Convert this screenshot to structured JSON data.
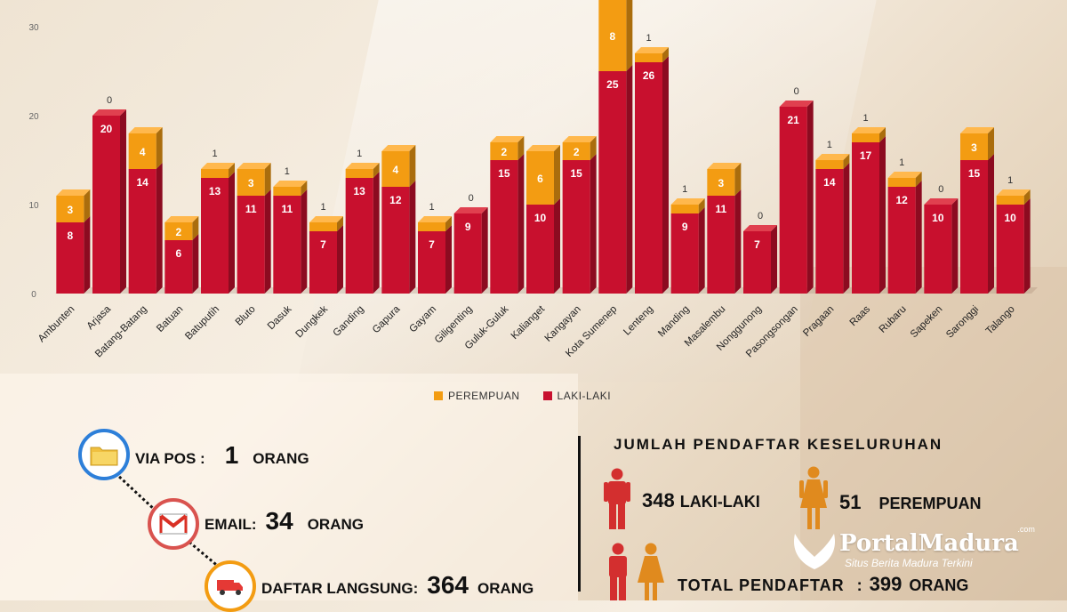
{
  "chart_data": {
    "type": "bar",
    "stacked": true,
    "ylim": [
      0,
      30
    ],
    "yticks": [
      0,
      10,
      20,
      30
    ],
    "categories": [
      "Ambunten",
      "Arjasa",
      "Batang-Batang",
      "Batuan",
      "Batuputih",
      "Bluto",
      "Dasuk",
      "Dungkek",
      "Ganding",
      "Gapura",
      "Gayam",
      "Giligenting",
      "Guluk-Guluk",
      "Kalianget",
      "Kangayan",
      "Kota Sumenep",
      "Lenteng",
      "Manding",
      "Masalembu",
      "Nonggunong",
      "Pasongsongan",
      "Pragaan",
      "Raas",
      "Rubaru",
      "Sapeken",
      "Saronggi",
      "Talango"
    ],
    "series": [
      {
        "name": "LAKI-LAKI",
        "color": "#c8102e",
        "values": [
          8,
          20,
          14,
          6,
          13,
          11,
          11,
          7,
          13,
          12,
          7,
          9,
          15,
          10,
          15,
          25,
          26,
          9,
          11,
          7,
          21,
          14,
          17,
          12,
          10,
          15,
          10
        ]
      },
      {
        "name": "PEREMPUAN",
        "color": "#f39c12",
        "values": [
          3,
          0,
          4,
          2,
          1,
          3,
          1,
          1,
          1,
          4,
          1,
          0,
          2,
          6,
          2,
          8,
          1,
          1,
          3,
          0,
          0,
          1,
          1,
          1,
          0,
          3,
          1
        ]
      }
    ],
    "legend": [
      "PEREMPUAN",
      "LAKI-LAKI"
    ],
    "legend_position": "bottom"
  },
  "methods": [
    {
      "label": "VIA POS :",
      "value": "1",
      "unit": "ORANG",
      "icon": "folder-icon",
      "color": "#2d7fd9"
    },
    {
      "label": "EMAIL:",
      "value": "34",
      "unit": "ORANG",
      "icon": "gmail-icon",
      "color": "#d9534f"
    },
    {
      "label": "DAFTAR LANGSUNG:",
      "value": "364",
      "unit": "ORANG",
      "icon": "delivery-truck-icon",
      "color": "#f39c12"
    }
  ],
  "totals": {
    "title": "JUMLAH PENDAFTAR KESELURUHAN",
    "male_count": "348",
    "male_label": "LAKI-LAKI",
    "female_count": "51",
    "female_label": "PEREMPUAN",
    "total_label": "TOTAL PENDAFTAR",
    "total_sep": ":",
    "total_count": "399",
    "total_unit": "ORANG"
  },
  "logo": {
    "name": "PortalMadura",
    "suffix": ".com",
    "tagline": "Situs Berita Madura Terkini"
  }
}
